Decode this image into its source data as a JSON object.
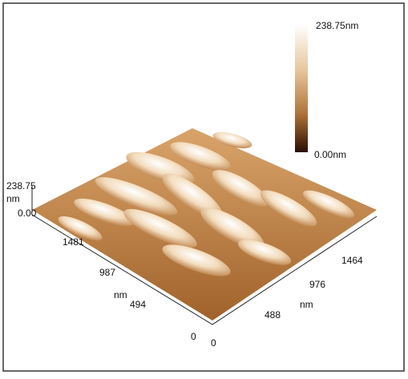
{
  "colorbar": {
    "max_label": "238.75nm",
    "min_label": "0.00nm"
  },
  "z_axis": {
    "max_label": "238.75",
    "unit": "nm",
    "min_label": "0.00"
  },
  "y_axis": {
    "ticks": [
      "1481",
      "987",
      "494",
      "0"
    ],
    "unit": "nm"
  },
  "x_axis": {
    "ticks": [
      "0",
      "488",
      "976",
      "1464"
    ],
    "unit": "nm"
  }
}
